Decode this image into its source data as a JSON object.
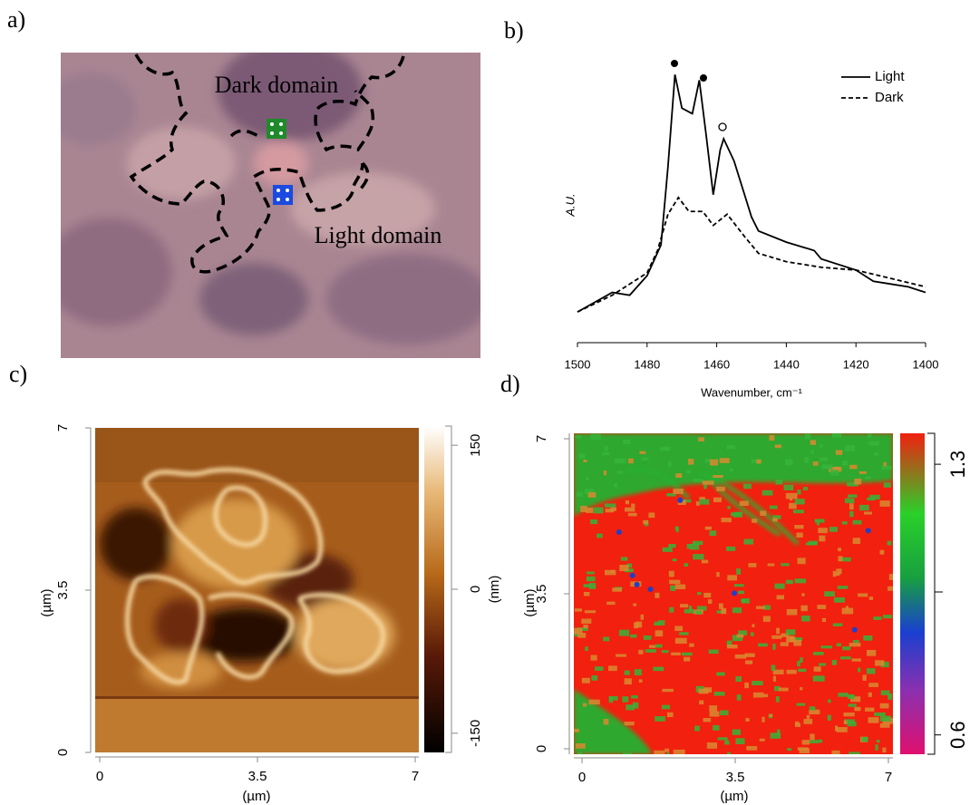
{
  "panel_labels": [
    "a)",
    "b)",
    "c)",
    "d)"
  ],
  "photo": {
    "annotations": [
      "Dark domain",
      "Light domain"
    ]
  },
  "chart_data": [
    {
      "type": "line",
      "xlabel": "Wavenumber, cm⁻¹",
      "ylabel": "A.U.",
      "xlim": [
        1500,
        1400
      ],
      "xticks": [
        1500,
        1480,
        1460,
        1440,
        1420,
        1400
      ],
      "ylim": [
        0,
        1
      ],
      "series": [
        {
          "name": "Light",
          "color": "#000000",
          "dash": false,
          "x": [
            1500,
            1490,
            1485,
            1480,
            1476,
            1474,
            1472,
            1470,
            1467,
            1465,
            1463,
            1461,
            1459,
            1458,
            1455,
            1452,
            1450,
            1448,
            1440,
            1432,
            1430,
            1420,
            1415,
            1410,
            1405,
            1400
          ],
          "values": [
            0.11,
            0.18,
            0.17,
            0.24,
            0.35,
            0.63,
            0.96,
            0.84,
            0.82,
            0.94,
            0.74,
            0.53,
            0.69,
            0.73,
            0.65,
            0.53,
            0.45,
            0.4,
            0.36,
            0.33,
            0.3,
            0.26,
            0.22,
            0.21,
            0.2,
            0.18
          ]
        },
        {
          "name": "Dark",
          "color": "#000000",
          "dash": true,
          "x": [
            1500,
            1490,
            1480,
            1477,
            1474,
            1471,
            1468,
            1464,
            1461,
            1457,
            1452,
            1448,
            1440,
            1430,
            1420,
            1410,
            1400
          ],
          "values": [
            0.11,
            0.17,
            0.25,
            0.33,
            0.46,
            0.52,
            0.47,
            0.47,
            0.42,
            0.46,
            0.38,
            0.32,
            0.29,
            0.27,
            0.26,
            0.23,
            0.2
          ]
        }
      ]
    },
    {
      "type": "height-map",
      "xlabel": "(µm)",
      "ylabel": "(µm)",
      "xlim": [
        0,
        7
      ],
      "xticks": [
        0,
        3.5,
        7
      ],
      "ylim": [
        0,
        7
      ],
      "yticks": [
        0,
        3.5,
        7
      ],
      "colorbar_label": "(nm)",
      "colorbar_lim": [
        -170,
        170
      ],
      "colorbar_ticks": [
        -150,
        0,
        150
      ]
    },
    {
      "type": "ratio-map",
      "xlabel": "(µm)",
      "ylabel": "(µm)",
      "xlim": [
        0,
        7
      ],
      "xticks": [
        0,
        3.5,
        7
      ],
      "ylim": [
        0,
        7
      ],
      "yticks": [
        0,
        3.5,
        7
      ],
      "colorbar_lim": [
        0.55,
        1.38
      ],
      "colorbar_ticks": [
        0.6,
        1.3
      ]
    }
  ]
}
